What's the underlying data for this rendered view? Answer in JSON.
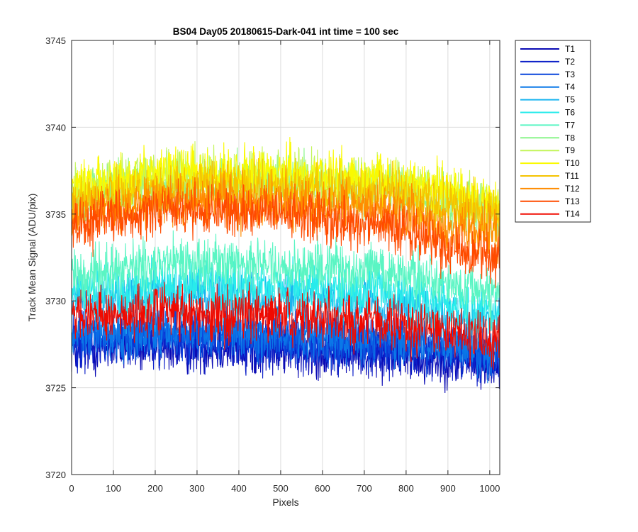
{
  "chart_data": {
    "type": "line",
    "title": "BS04 Day05 20180615-Dark-041 int time = 100 sec",
    "xlabel": "Pixels",
    "ylabel": "Track Mean Signal (ADU/pix)",
    "xlim": [
      0,
      1024
    ],
    "ylim": [
      3720,
      3745
    ],
    "xticks": [
      0,
      100,
      200,
      300,
      400,
      500,
      600,
      700,
      800,
      900,
      1000
    ],
    "yticks": [
      3720,
      3725,
      3730,
      3735,
      3740,
      3745
    ],
    "grid": true,
    "legend_position": "outside-top-right",
    "x_count": 1024,
    "noise_amplitude": 1.4,
    "series": [
      {
        "name": "T1",
        "color": "#0a0ab4",
        "mean_profile": [
          [
            0,
            3727.3
          ],
          [
            250,
            3727.4
          ],
          [
            500,
            3727.2
          ],
          [
            750,
            3727.0
          ],
          [
            1024,
            3726.3
          ]
        ]
      },
      {
        "name": "T2",
        "color": "#0c1fc8",
        "mean_profile": [
          [
            0,
            3727.6
          ],
          [
            250,
            3727.7
          ],
          [
            500,
            3727.5
          ],
          [
            750,
            3727.3
          ],
          [
            1024,
            3726.6
          ]
        ]
      },
      {
        "name": "T3",
        "color": "#0a46dc",
        "mean_profile": [
          [
            0,
            3727.9
          ],
          [
            250,
            3728.0
          ],
          [
            500,
            3727.8
          ],
          [
            750,
            3727.6
          ],
          [
            1024,
            3726.9
          ]
        ]
      },
      {
        "name": "T4",
        "color": "#0a78e8",
        "mean_profile": [
          [
            0,
            3728.2
          ],
          [
            250,
            3728.3
          ],
          [
            500,
            3728.1
          ],
          [
            750,
            3727.9
          ],
          [
            1024,
            3727.2
          ]
        ]
      },
      {
        "name": "T5",
        "color": "#19b4f0",
        "mean_profile": [
          [
            0,
            3729.8
          ],
          [
            250,
            3730.3
          ],
          [
            500,
            3730.1
          ],
          [
            750,
            3729.8
          ],
          [
            1024,
            3728.6
          ]
        ]
      },
      {
        "name": "T6",
        "color": "#28ebeb",
        "mean_profile": [
          [
            0,
            3730.5
          ],
          [
            250,
            3731.0
          ],
          [
            500,
            3730.8
          ],
          [
            750,
            3730.5
          ],
          [
            1024,
            3729.3
          ]
        ]
      },
      {
        "name": "T7",
        "color": "#5af5c3",
        "mean_profile": [
          [
            0,
            3731.5
          ],
          [
            250,
            3732.3
          ],
          [
            500,
            3732.1
          ],
          [
            750,
            3731.7
          ],
          [
            1024,
            3730.3
          ]
        ]
      },
      {
        "name": "T8",
        "color": "#8cf58c",
        "mean_profile": [
          [
            0,
            3736.0
          ],
          [
            250,
            3736.9
          ],
          [
            500,
            3736.8
          ],
          [
            750,
            3736.5
          ],
          [
            1024,
            3735.0
          ]
        ]
      },
      {
        "name": "T9",
        "color": "#c3f55a",
        "mean_profile": [
          [
            0,
            3736.3
          ],
          [
            250,
            3737.2
          ],
          [
            500,
            3737.1
          ],
          [
            750,
            3736.8
          ],
          [
            1024,
            3735.3
          ]
        ]
      },
      {
        "name": "T10",
        "color": "#fafa00",
        "mean_profile": [
          [
            0,
            3736.5
          ],
          [
            250,
            3737.4
          ],
          [
            500,
            3737.3
          ],
          [
            750,
            3737.1
          ],
          [
            1024,
            3735.7
          ]
        ]
      },
      {
        "name": "T11",
        "color": "#f5c300",
        "mean_profile": [
          [
            0,
            3735.8
          ],
          [
            250,
            3736.6
          ],
          [
            500,
            3736.5
          ],
          [
            750,
            3736.2
          ],
          [
            1024,
            3734.8
          ]
        ]
      },
      {
        "name": "T12",
        "color": "#ff8c00",
        "mean_profile": [
          [
            0,
            3735.0
          ],
          [
            250,
            3735.9
          ],
          [
            500,
            3735.7
          ],
          [
            750,
            3735.3
          ],
          [
            1024,
            3733.6
          ]
        ]
      },
      {
        "name": "T13",
        "color": "#ff4b00",
        "mean_profile": [
          [
            0,
            3734.3
          ],
          [
            250,
            3735.3
          ],
          [
            500,
            3735.0
          ],
          [
            750,
            3734.3
          ],
          [
            1024,
            3732.3
          ]
        ]
      },
      {
        "name": "T14",
        "color": "#f00a00",
        "mean_profile": [
          [
            0,
            3729.2
          ],
          [
            250,
            3729.4
          ],
          [
            500,
            3729.2
          ],
          [
            750,
            3728.8
          ],
          [
            1024,
            3727.8
          ]
        ]
      }
    ]
  }
}
